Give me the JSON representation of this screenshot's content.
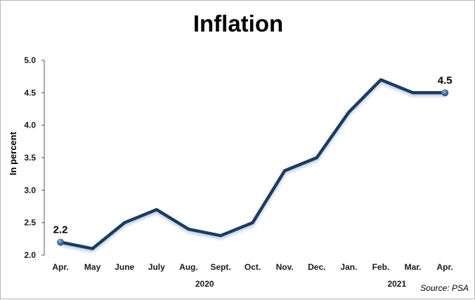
{
  "chart_data": {
    "type": "line",
    "title": "Inflation",
    "ylabel": "In percent",
    "xlabel": "",
    "ylim": [
      2.0,
      5.0
    ],
    "yticks": [
      "2.0",
      "2.5",
      "3.0",
      "3.5",
      "4.0",
      "4.5",
      "5.0"
    ],
    "categories": [
      "Apr.",
      "May",
      "June",
      "July",
      "Aug.",
      "Sept.",
      "Oct.",
      "Nov.",
      "Dec.",
      "Jan.",
      "Feb.",
      "Mar.",
      "Apr."
    ],
    "year_labels": [
      {
        "label": "2020",
        "category_index": 4.5
      },
      {
        "label": "2021",
        "category_index": 10.5
      }
    ],
    "series": [
      {
        "values": [
          2.2,
          2.1,
          2.5,
          2.7,
          2.4,
          2.3,
          2.5,
          3.3,
          3.5,
          4.2,
          4.7,
          4.5,
          4.5
        ]
      }
    ],
    "data_labels": [
      {
        "index": 0,
        "text": "2.2"
      },
      {
        "index": 12,
        "text": "4.5"
      }
    ],
    "grid": false,
    "legend": "none",
    "source": "Source: PSA",
    "colors": {
      "line": "#1f3a5f",
      "marker": "#2e5a8c",
      "axis": "#3f5f3f"
    }
  }
}
